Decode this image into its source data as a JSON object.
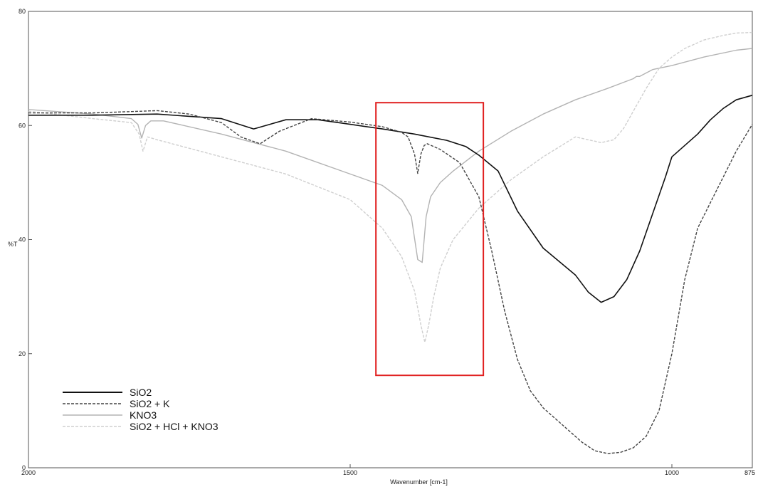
{
  "chart_data": {
    "type": "line",
    "xlabel": "Wavenumber [cm-1]",
    "ylabel": "%T",
    "xlim": [
      2000,
      875
    ],
    "ylim": [
      0,
      80
    ],
    "x_reversed": true,
    "x_ticks": [
      {
        "value": 2000,
        "label": "2000"
      },
      {
        "value": 1500,
        "label": "1500"
      },
      {
        "value": 1000,
        "label": "1000"
      },
      {
        "value": 875,
        "label": "875"
      }
    ],
    "y_ticks": [
      {
        "value": 0,
        "label": "0"
      },
      {
        "value": 20,
        "label": "20"
      },
      {
        "value": 40,
        "label": "40"
      },
      {
        "value": 60,
        "label": "60"
      },
      {
        "value": 80,
        "label": "80"
      }
    ],
    "grid": false,
    "legend_position": "bottom-left",
    "highlight_box": {
      "x": [
        1460,
        1293
      ],
      "y": [
        64,
        16.2
      ],
      "color": "#e02020"
    },
    "series": [
      {
        "name": "SiO2",
        "color": "#111111",
        "dash": "solid",
        "x": [
          2000,
          1900,
          1800,
          1700,
          1650,
          1600,
          1550,
          1500,
          1450,
          1400,
          1350,
          1320,
          1300,
          1270,
          1240,
          1200,
          1150,
          1130,
          1110,
          1090,
          1070,
          1050,
          1030,
          1010,
          1000,
          980,
          960,
          940,
          920,
          900,
          875
        ],
        "y": [
          61.8,
          61.8,
          62.0,
          61.2,
          59.4,
          61.0,
          61.0,
          60.2,
          59.4,
          58.5,
          57.4,
          56.3,
          54.8,
          52.0,
          45.0,
          38.5,
          33.8,
          30.8,
          29.0,
          30.0,
          33.0,
          38.0,
          44.5,
          51.0,
          54.5,
          56.5,
          58.5,
          61.0,
          63.0,
          64.5,
          65.3
        ]
      },
      {
        "name": "SiO2 + K",
        "color": "#444444",
        "dash": "dashed",
        "x": [
          2000,
          1900,
          1800,
          1750,
          1700,
          1670,
          1640,
          1610,
          1560,
          1500,
          1450,
          1420,
          1410,
          1400,
          1395,
          1390,
          1385,
          1380,
          1360,
          1330,
          1300,
          1280,
          1260,
          1240,
          1220,
          1200,
          1180,
          1160,
          1140,
          1120,
          1100,
          1080,
          1060,
          1040,
          1020,
          1000,
          980,
          960,
          940,
          920,
          900,
          875
        ],
        "y": [
          62.2,
          62.2,
          62.6,
          62.0,
          60.5,
          58.0,
          56.8,
          59.0,
          61.2,
          60.6,
          59.8,
          58.8,
          58.0,
          55.0,
          51.6,
          55.0,
          56.5,
          56.8,
          55.8,
          53.5,
          47.5,
          38.0,
          27.5,
          19.0,
          13.5,
          10.5,
          8.5,
          6.5,
          4.5,
          3.0,
          2.5,
          2.7,
          3.5,
          5.5,
          10.0,
          20.0,
          33.0,
          42.0,
          46.5,
          51.0,
          55.5,
          60.2
        ]
      },
      {
        "name": "KNO3",
        "color": "#b3b3b3",
        "dash": "solid",
        "x": [
          2000,
          1900,
          1840,
          1830,
          1824,
          1818,
          1810,
          1790,
          1700,
          1600,
          1500,
          1450,
          1420,
          1405,
          1395,
          1388,
          1382,
          1375,
          1360,
          1340,
          1300,
          1250,
          1200,
          1150,
          1100,
          1060,
          1055,
          1050,
          1030,
          1000,
          950,
          900,
          875
        ],
        "y": [
          62.8,
          62.0,
          61.2,
          60.2,
          57.8,
          60.0,
          60.8,
          60.8,
          58.5,
          55.5,
          51.5,
          49.5,
          47.0,
          44.0,
          36.5,
          36.0,
          44.0,
          47.5,
          50.0,
          52.0,
          55.5,
          59.0,
          62.0,
          64.5,
          66.5,
          68.2,
          68.6,
          68.6,
          69.8,
          70.5,
          72.0,
          73.2,
          73.5
        ]
      },
      {
        "name": "SiO2 + HCl + KNO3",
        "color": "#cfcfcf",
        "dash": "dashed",
        "x": [
          2000,
          1900,
          1840,
          1828,
          1822,
          1815,
          1800,
          1700,
          1600,
          1500,
          1450,
          1420,
          1400,
          1390,
          1384,
          1378,
          1370,
          1360,
          1340,
          1300,
          1250,
          1200,
          1150,
          1110,
          1090,
          1075,
          1060,
          1040,
          1020,
          1000,
          980,
          950,
          920,
          900,
          875
        ],
        "y": [
          62.5,
          61.2,
          60.5,
          58.5,
          55.5,
          58.0,
          57.5,
          54.5,
          51.5,
          47.0,
          42.0,
          37.0,
          31.0,
          25.0,
          22.0,
          25.0,
          30.0,
          35.0,
          40.0,
          45.5,
          50.5,
          54.5,
          58.0,
          57.0,
          57.5,
          59.5,
          62.5,
          66.5,
          70.0,
          72.0,
          73.5,
          75.0,
          75.8,
          76.2,
          76.3
        ]
      }
    ]
  }
}
